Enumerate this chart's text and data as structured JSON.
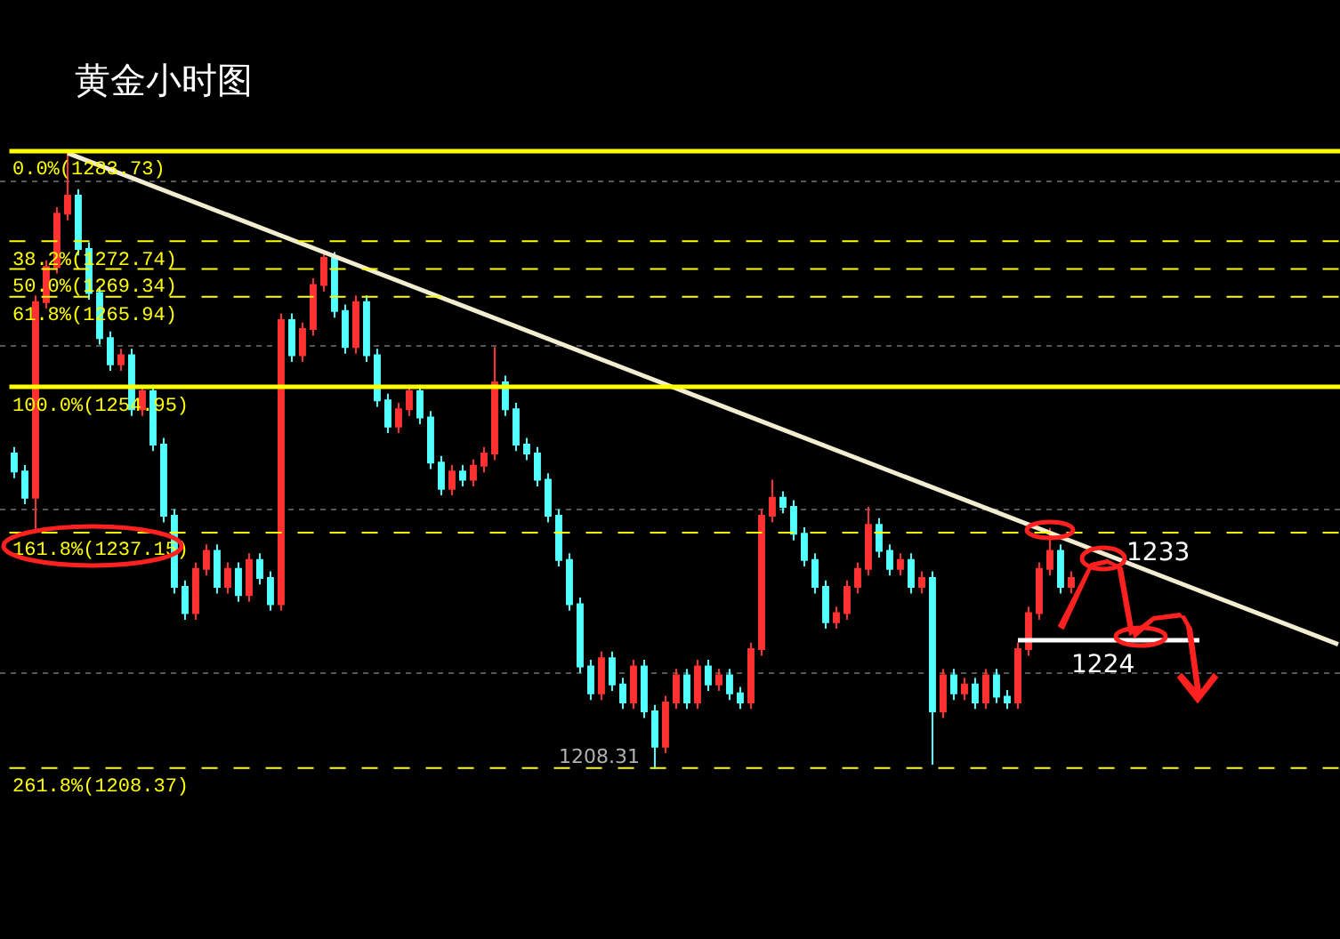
{
  "chart_data": {
    "type": "candlestick",
    "title": "黄金小时图",
    "categories": [
      null,
      null,
      null,
      null,
      null,
      null,
      null,
      null,
      null,
      null,
      null,
      null,
      null,
      null,
      null,
      null,
      null,
      null,
      null,
      null,
      null,
      null,
      null,
      null,
      null,
      null,
      null,
      null,
      null,
      null,
      null,
      null,
      null,
      null,
      null,
      null,
      null,
      null,
      null,
      null,
      null,
      null,
      null,
      null,
      null,
      null,
      null,
      null,
      null,
      null,
      null,
      null,
      null,
      null,
      null,
      null,
      null,
      null,
      null,
      null,
      null,
      null,
      null,
      null,
      null,
      null,
      null,
      null,
      null,
      null,
      null,
      null,
      null,
      null,
      null,
      null,
      null,
      null,
      null,
      null,
      null,
      null,
      null,
      null,
      null,
      null,
      null,
      null,
      null,
      null,
      null,
      null,
      null,
      null,
      null,
      null,
      null,
      null,
      null,
      null,
      null,
      null,
      null,
      null,
      null,
      null,
      null,
      null,
      null,
      null,
      null,
      null,
      null,
      null,
      null,
      null,
      null,
      null,
      null,
      null,
      null,
      null,
      null,
      null,
      null
    ],
    "ohlc": [
      [
        1246.8,
        1247.6,
        1243.8,
        1244.6
      ],
      [
        1244.6,
        1245.4,
        1240.6,
        1241.4
      ],
      [
        1241.4,
        1266.1,
        1237.5,
        1265.3
      ],
      [
        1265.3,
        1270.4,
        1264.5,
        1269.6
      ],
      [
        1269.6,
        1276.9,
        1268.8,
        1276.1
      ],
      [
        1276.1,
        1283.7,
        1275.3,
        1278.3
      ],
      [
        1278.3,
        1279.1,
        1271.0,
        1271.8
      ],
      [
        1271.8,
        1272.6,
        1265.6,
        1266.4
      ],
      [
        1266.4,
        1267.2,
        1260.1,
        1260.9
      ],
      [
        1260.9,
        1261.7,
        1256.9,
        1257.7
      ],
      [
        1257.7,
        1259.6,
        1256.9,
        1258.8
      ],
      [
        1258.8,
        1259.6,
        1251.4,
        1252.2
      ],
      [
        1252.2,
        1255.2,
        1251.4,
        1254.4
      ],
      [
        1254.4,
        1255.2,
        1247.1,
        1247.9
      ],
      [
        1247.9,
        1248.7,
        1238.4,
        1239.2
      ],
      [
        1239.2,
        1240.0,
        1229.7,
        1230.5
      ],
      [
        1230.5,
        1231.3,
        1226.5,
        1227.3
      ],
      [
        1227.3,
        1233.5,
        1226.5,
        1232.7
      ],
      [
        1232.7,
        1235.7,
        1231.9,
        1234.9
      ],
      [
        1234.9,
        1235.7,
        1229.7,
        1230.5
      ],
      [
        1230.5,
        1233.5,
        1229.7,
        1232.7
      ],
      [
        1232.7,
        1233.5,
        1228.7,
        1229.5
      ],
      [
        1229.5,
        1234.6,
        1228.7,
        1233.8
      ],
      [
        1233.8,
        1234.6,
        1230.8,
        1231.6
      ],
      [
        1231.6,
        1232.4,
        1227.6,
        1228.4
      ],
      [
        1228.4,
        1263.9,
        1227.6,
        1263.1
      ],
      [
        1263.1,
        1263.9,
        1258.0,
        1258.8
      ],
      [
        1258.8,
        1262.8,
        1258.0,
        1262.0
      ],
      [
        1262.0,
        1268.2,
        1261.2,
        1267.4
      ],
      [
        1267.4,
        1271.4,
        1266.6,
        1270.7
      ],
      [
        1270.7,
        1271.4,
        1263.4,
        1264.2
      ],
      [
        1264.2,
        1265.0,
        1259.0,
        1259.8
      ],
      [
        1259.8,
        1266.1,
        1259.0,
        1265.3
      ],
      [
        1265.3,
        1266.1,
        1258.0,
        1258.8
      ],
      [
        1258.8,
        1259.6,
        1252.5,
        1253.3
      ],
      [
        1253.3,
        1254.1,
        1249.3,
        1250.1
      ],
      [
        1250.1,
        1253.0,
        1249.3,
        1252.2
      ],
      [
        1252.2,
        1255.2,
        1251.4,
        1254.4
      ],
      [
        1254.4,
        1255.2,
        1250.4,
        1251.2
      ],
      [
        1251.2,
        1252.0,
        1244.9,
        1245.7
      ],
      [
        1245.7,
        1246.5,
        1241.7,
        1242.5
      ],
      [
        1242.5,
        1245.4,
        1241.7,
        1244.6
      ],
      [
        1244.6,
        1245.4,
        1242.8,
        1243.6
      ],
      [
        1243.6,
        1246.1,
        1242.8,
        1245.3
      ],
      [
        1245.3,
        1247.6,
        1244.5,
        1246.8
      ],
      [
        1246.8,
        1259.8,
        1246.0,
        1255.5
      ],
      [
        1255.5,
        1256.3,
        1251.4,
        1252.2
      ],
      [
        1252.2,
        1253.0,
        1247.1,
        1247.9
      ],
      [
        1247.9,
        1248.7,
        1246.0,
        1246.8
      ],
      [
        1246.8,
        1247.6,
        1242.8,
        1243.6
      ],
      [
        1243.6,
        1244.4,
        1238.4,
        1239.2
      ],
      [
        1239.2,
        1240.0,
        1233.0,
        1233.8
      ],
      [
        1233.8,
        1234.6,
        1227.6,
        1228.4
      ],
      [
        1228.4,
        1229.2,
        1220.0,
        1220.8
      ],
      [
        1220.8,
        1221.6,
        1216.7,
        1217.5
      ],
      [
        1217.5,
        1222.6,
        1216.7,
        1221.8
      ],
      [
        1221.8,
        1222.6,
        1217.8,
        1218.6
      ],
      [
        1218.6,
        1219.4,
        1215.6,
        1216.4
      ],
      [
        1216.4,
        1221.6,
        1215.6,
        1220.8
      ],
      [
        1220.8,
        1221.6,
        1214.5,
        1215.3
      ],
      [
        1215.3,
        1216.1,
        1208.31,
        1211.0
      ],
      [
        1211.0,
        1217.2,
        1210.2,
        1216.4
      ],
      [
        1216.4,
        1220.5,
        1215.6,
        1219.7
      ],
      [
        1219.7,
        1220.5,
        1215.6,
        1216.4
      ],
      [
        1216.4,
        1221.6,
        1215.6,
        1220.8
      ],
      [
        1220.8,
        1221.6,
        1217.8,
        1218.6
      ],
      [
        1218.6,
        1220.5,
        1217.8,
        1219.7
      ],
      [
        1219.7,
        1220.5,
        1216.7,
        1217.5
      ],
      [
        1217.5,
        1218.3,
        1215.6,
        1216.4
      ],
      [
        1216.4,
        1223.7,
        1215.6,
        1222.9
      ],
      [
        1222.9,
        1240.0,
        1222.1,
        1239.2
      ],
      [
        1239.2,
        1243.6,
        1238.4,
        1241.4
      ],
      [
        1241.4,
        1242.2,
        1239.5,
        1240.3
      ],
      [
        1240.3,
        1241.1,
        1236.2,
        1237.0
      ],
      [
        1237.0,
        1237.8,
        1233.0,
        1233.8
      ],
      [
        1233.8,
        1234.6,
        1229.7,
        1230.5
      ],
      [
        1230.5,
        1231.3,
        1225.4,
        1226.2
      ],
      [
        1226.2,
        1228.1,
        1225.4,
        1227.3
      ],
      [
        1227.3,
        1231.3,
        1226.5,
        1230.5
      ],
      [
        1230.5,
        1233.5,
        1229.7,
        1232.7
      ],
      [
        1232.7,
        1240.3,
        1231.9,
        1238.1
      ],
      [
        1238.1,
        1238.9,
        1234.1,
        1234.9
      ],
      [
        1234.9,
        1235.7,
        1231.9,
        1232.7
      ],
      [
        1232.7,
        1234.6,
        1231.9,
        1233.8
      ],
      [
        1233.8,
        1234.6,
        1229.7,
        1230.5
      ],
      [
        1230.5,
        1232.4,
        1229.7,
        1231.6
      ],
      [
        1231.6,
        1232.4,
        1208.8,
        1215.3
      ],
      [
        1215.3,
        1220.5,
        1214.5,
        1219.7
      ],
      [
        1219.7,
        1220.5,
        1216.7,
        1217.5
      ],
      [
        1217.5,
        1219.4,
        1216.7,
        1218.6
      ],
      [
        1218.6,
        1219.4,
        1215.6,
        1216.4
      ],
      [
        1216.4,
        1220.5,
        1215.6,
        1219.7
      ],
      [
        1219.7,
        1220.5,
        1216.3,
        1217.1
      ],
      [
        1217.1,
        1217.9,
        1215.6,
        1216.4
      ],
      [
        1216.4,
        1223.7,
        1215.6,
        1222.9
      ],
      [
        1222.9,
        1228.1,
        1222.1,
        1227.3
      ],
      [
        1227.3,
        1233.5,
        1226.5,
        1232.7
      ],
      [
        1232.7,
        1237.7,
        1231.9,
        1234.9
      ],
      [
        1234.9,
        1235.7,
        1229.7,
        1230.5
      ],
      [
        1230.5,
        1232.4,
        1229.7,
        1231.6
      ],
      null,
      null,
      null,
      null,
      null,
      null,
      null,
      null,
      null,
      null,
      null,
      null,
      null,
      null,
      null,
      null,
      null,
      null,
      null,
      null,
      null,
      null,
      null,
      null,
      null
    ],
    "colors": [
      "#54ffff",
      "#54ffff",
      "#ff3232",
      "#ff3232",
      "#ff3232",
      "#ff3232",
      "#54ffff",
      "#54ffff",
      "#54ffff",
      "#54ffff",
      "#ff3232",
      "#54ffff",
      "#ff3232",
      "#54ffff",
      "#54ffff",
      "#54ffff",
      "#54ffff",
      "#ff3232",
      "#ff3232",
      "#54ffff",
      "#ff3232",
      "#54ffff",
      "#ff3232",
      "#54ffff",
      "#54ffff",
      "#ff3232",
      "#54ffff",
      "#ff3232",
      "#ff3232",
      "#ff3232",
      "#54ffff",
      "#54ffff",
      "#ff3232",
      "#54ffff",
      "#54ffff",
      "#54ffff",
      "#ff3232",
      "#ff3232",
      "#54ffff",
      "#54ffff",
      "#54ffff",
      "#ff3232",
      "#54ffff",
      "#ff3232",
      "#ff3232",
      "#ff3232",
      "#54ffff",
      "#54ffff",
      "#54ffff",
      "#54ffff",
      "#54ffff",
      "#54ffff",
      "#54ffff",
      "#54ffff",
      "#54ffff",
      "#ff3232",
      "#54ffff",
      "#54ffff",
      "#ff3232",
      "#54ffff",
      "#54ffff",
      "#ff3232",
      "#ff3232",
      "#54ffff",
      "#ff3232",
      "#54ffff",
      "#ff3232",
      "#54ffff",
      "#54ffff",
      "#ff3232",
      "#ff3232",
      "#ff3232",
      "#54ffff",
      "#54ffff",
      "#54ffff",
      "#54ffff",
      "#54ffff",
      "#ff3232",
      "#ff3232",
      "#ff3232",
      "#ff3232",
      "#54ffff",
      "#54ffff",
      "#ff3232",
      "#54ffff",
      "#ff3232",
      "#54ffff",
      "#ff3232",
      "#54ffff",
      "#ff3232",
      "#54ffff",
      "#ff3232",
      "#54ffff",
      "#54ffff",
      "#ff3232",
      "#ff3232",
      "#ff3232",
      "#ff3232",
      "#54ffff",
      "#ff3232",
      null,
      null,
      null,
      null,
      null,
      null,
      null,
      null,
      null,
      null,
      null,
      null,
      null,
      null,
      null,
      null,
      null,
      null,
      null,
      null,
      null,
      null,
      null,
      null,
      null
    ],
    "ylim": [
      1187.5,
      1302.2
    ],
    "yticks": [
      {
        "value": 1220,
        "label": null
      },
      {
        "value": 1240,
        "label": null
      },
      {
        "value": 1260,
        "label": null
      },
      {
        "value": 1280,
        "label": null
      }
    ],
    "grid": "y",
    "series": [
      {
        "type": "line",
        "color": "#f2ecd0",
        "values": [
          null,
          null,
          null,
          null,
          null,
          1283.5,
          null,
          null,
          null,
          null,
          null,
          null,
          null,
          null,
          null,
          null,
          null,
          null,
          null,
          null,
          null,
          null,
          null,
          null,
          null,
          null,
          null,
          null,
          null,
          null,
          null,
          null,
          null,
          null,
          null,
          null,
          null,
          null,
          null,
          null,
          null,
          null,
          null,
          null,
          null,
          null,
          null,
          null,
          null,
          null,
          null,
          null,
          null,
          null,
          null,
          null,
          null,
          null,
          null,
          null,
          null,
          null,
          null,
          null,
          null,
          null,
          null,
          null,
          null,
          null,
          null,
          null,
          null,
          null,
          null,
          null,
          null,
          null,
          null,
          null,
          null,
          null,
          null,
          null,
          null,
          null,
          null,
          null,
          null,
          null,
          null,
          null,
          null,
          null,
          null,
          null,
          null,
          null,
          null,
          null,
          null,
          null,
          null,
          null,
          null,
          null,
          null,
          null,
          null,
          null,
          null,
          null,
          null,
          null,
          null,
          null,
          null,
          null,
          null,
          null,
          null,
          null,
          null,
          null,
          1223.5
        ]
      },
      {
        "type": "line",
        "color": "#ffffff",
        "values": [
          null,
          null,
          null,
          null,
          null,
          null,
          null,
          null,
          null,
          null,
          null,
          null,
          null,
          null,
          null,
          null,
          null,
          null,
          null,
          null,
          null,
          null,
          null,
          null,
          null,
          null,
          null,
          null,
          null,
          null,
          null,
          null,
          null,
          null,
          null,
          null,
          null,
          null,
          null,
          null,
          null,
          null,
          null,
          null,
          null,
          null,
          null,
          null,
          null,
          null,
          null,
          null,
          null,
          null,
          null,
          null,
          null,
          null,
          null,
          null,
          null,
          null,
          null,
          null,
          null,
          null,
          null,
          null,
          null,
          null,
          null,
          null,
          null,
          null,
          null,
          null,
          null,
          null,
          null,
          null,
          null,
          null,
          null,
          null,
          null,
          null,
          null,
          null,
          null,
          null,
          null,
          null,
          null,
          null,
          1224,
          null,
          null,
          null,
          null,
          null,
          null,
          null,
          null,
          null,
          null,
          null,
          null,
          null,
          null,
          null,
          null,
          1224,
          null,
          null,
          null,
          null,
          null,
          null,
          null,
          null,
          null,
          null,
          null,
          null,
          null
        ]
      }
    ],
    "ref_lines": [
      {
        "axis": "y",
        "value": 1283.73,
        "label": "0.0%(1283.73)",
        "color": "#ffff00",
        "line_style": "solid"
      },
      {
        "axis": "y",
        "value": 1272.74,
        "label": "38.2%(1272.74)",
        "color": "#ffff00",
        "line_style": "dashed"
      },
      {
        "axis": "y",
        "value": 1269.34,
        "label": "50.0%(1269.34)",
        "color": "#ffff00",
        "line_style": "dashed"
      },
      {
        "axis": "y",
        "value": 1265.94,
        "label": "61.8%(1265.94)",
        "color": "#ffff00",
        "line_style": "dashed"
      },
      {
        "axis": "y",
        "value": 1254.95,
        "label": "100.0%(1254.95)",
        "color": "#ffff00",
        "line_style": "solid"
      },
      {
        "axis": "y",
        "value": 1237.15,
        "label": "161.8%(1237.15)",
        "color": "#ffff00",
        "line_style": "dashed"
      },
      {
        "axis": "y",
        "value": 1208.37,
        "label": "261.8%(1208.37)",
        "color": "#ffff00",
        "line_style": "dashed"
      }
    ],
    "annotations": [
      {
        "text": "1233",
        "y": 1233
      },
      {
        "text": "1224",
        "y": 1224
      },
      {
        "text": "1208.31",
        "y": 1208.31
      }
    ]
  }
}
